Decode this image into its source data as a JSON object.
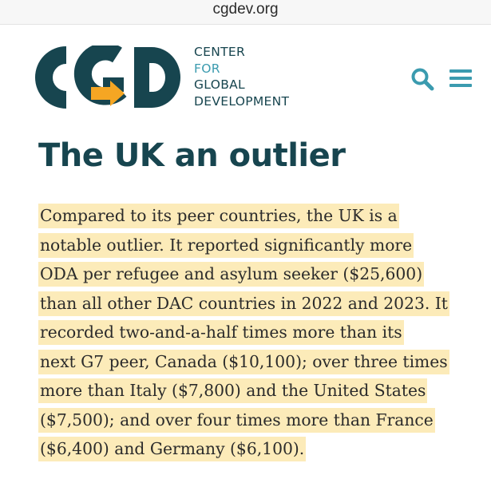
{
  "browser": {
    "url": "cgdev.org"
  },
  "header": {
    "logo_mark_text": "CGD",
    "logo_text": [
      "CENTER",
      "FOR",
      "GLOBAL",
      "DEVELOPMENT"
    ],
    "search_icon": "search-icon",
    "menu_icon": "hamburger-menu-icon"
  },
  "article": {
    "title": "The UK an outlier",
    "paragraph_lines": [
      "Compared to its peer countries, the UK is a",
      "notable outlier. It reported significantly more",
      "ODA per refugee and asylum seeker ($25,600)",
      "than all other DAC countries in 2022 and 2023. It",
      "recorded two-and-a-half times more than its",
      "next G7 peer, Canada ($10,100); over three times",
      "more than Italy ($7,800) and the United States",
      "($7,500); and over four times more than France",
      "($6,400) and Germany ($6,100)."
    ]
  },
  "colors": {
    "brand_dark": "#17454f",
    "brand_teal": "#3b9baf",
    "brand_orange": "#f5a623",
    "highlight": "#fcebb9",
    "text": "#2b2b2b"
  }
}
